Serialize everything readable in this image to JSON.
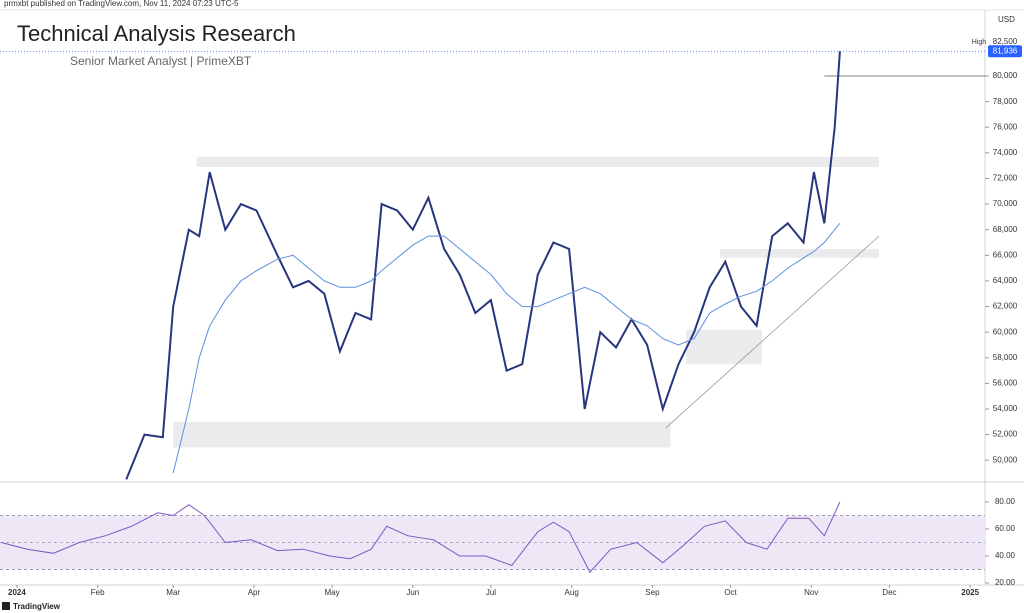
{
  "header": {
    "byline": "prmxbt published on TradingView.com, Nov 11, 2024 07:23 UTC-5",
    "title": "Technical Analysis Research",
    "subtitle": "Senior Market Analyst | PrimeXBT",
    "footer": "TradingView"
  },
  "chart_data": [
    {
      "type": "line",
      "currency": "USD",
      "x": [
        42,
        49,
        56,
        60,
        66,
        70,
        74,
        80,
        86,
        92,
        100,
        106,
        112,
        118,
        124,
        130,
        136,
        140,
        146,
        152,
        158,
        164,
        170,
        176,
        182,
        188,
        194,
        200,
        206,
        212,
        218,
        224,
        230,
        236,
        242,
        248,
        254,
        260,
        266,
        272,
        278,
        284,
        290,
        296,
        302,
        306,
        310,
        314,
        316
      ],
      "series": [
        {
          "color": "#27357e",
          "values": [
            48500,
            52000,
            51800,
            62000,
            68000,
            67500,
            72500,
            68000,
            70000,
            69500,
            66000,
            63500,
            64000,
            63000,
            58500,
            61500,
            61000,
            70000,
            69500,
            68000,
            70500,
            66500,
            64500,
            61500,
            62500,
            57000,
            57500,
            64500,
            67000,
            66500,
            54000,
            60000,
            58800,
            61000,
            59000,
            54000,
            57500,
            60000,
            63500,
            65500,
            62000,
            60500,
            67500,
            68500,
            67000,
            72500,
            68500,
            76000,
            81936
          ]
        },
        {
          "color": "#5b8fe0",
          "values": [
            null,
            null,
            null,
            49000,
            54000,
            58000,
            60500,
            62500,
            64000,
            64800,
            65700,
            66000,
            65000,
            64000,
            63500,
            63500,
            64000,
            64800,
            65800,
            66800,
            67500,
            67500,
            66500,
            65500,
            64500,
            63000,
            62000,
            62000,
            62500,
            63000,
            63500,
            63000,
            62000,
            61000,
            60500,
            59500,
            59000,
            59500,
            61500,
            62200,
            62800,
            63200,
            64000,
            65000,
            65800,
            66300,
            67000,
            68000,
            68500
          ]
        }
      ],
      "xlim": [
        -6.5,
        371.7
      ],
      "ylim": [
        48300,
        85000
      ],
      "xticks": [
        {
          "value": 0,
          "label": "2024"
        },
        {
          "value": 31,
          "label": "Feb"
        },
        {
          "value": 60,
          "label": "Mar"
        },
        {
          "value": 91,
          "label": "Apr"
        },
        {
          "value": 121,
          "label": "May"
        },
        {
          "value": 152,
          "label": "Jun"
        },
        {
          "value": 182,
          "label": "Jul"
        },
        {
          "value": 213,
          "label": "Aug"
        },
        {
          "value": 244,
          "label": "Sep"
        },
        {
          "value": 274,
          "label": "Oct"
        },
        {
          "value": 305,
          "label": "Nov"
        },
        {
          "value": 335,
          "label": "Dec"
        },
        {
          "value": 366,
          "label": "2025"
        }
      ],
      "yticks": [
        {
          "value": 50000,
          "label": "50,000"
        },
        {
          "value": 52000,
          "label": "52,000"
        },
        {
          "value": 54000,
          "label": "54,000"
        },
        {
          "value": 56000,
          "label": "56,000"
        },
        {
          "value": 58000,
          "label": "58,000"
        },
        {
          "value": 60000,
          "label": "60,000"
        },
        {
          "value": 62000,
          "label": "62,000"
        },
        {
          "value": 64000,
          "label": "64,000"
        },
        {
          "value": 66000,
          "label": "66,000"
        },
        {
          "value": 68000,
          "label": "68,000"
        },
        {
          "value": 70000,
          "label": "70,000"
        },
        {
          "value": 72000,
          "label": "72,000"
        },
        {
          "value": 74000,
          "label": "74,000"
        },
        {
          "value": 76000,
          "label": "76,000"
        },
        {
          "value": 78000,
          "label": "78,000"
        },
        {
          "value": 80000,
          "label": "80,000"
        }
      ],
      "high_label": "High",
      "high": {
        "value": 82500,
        "label": "82,500"
      },
      "last_price": {
        "value": 81936,
        "label": "81,936"
      },
      "hline": {
        "from": 310,
        "value": 80000
      },
      "zones": [
        {
          "x": [
            69,
            331
          ],
          "y": [
            72900,
            73700
          ]
        },
        {
          "x": [
            60,
            251
          ],
          "y": [
            51000,
            53000
          ]
        },
        {
          "x": [
            270,
            331
          ],
          "y": [
            65800,
            66500
          ]
        },
        {
          "x": [
            257,
            286
          ],
          "y": [
            57500,
            60200
          ]
        }
      ],
      "trendline": {
        "x": [
          249,
          331
        ],
        "y": [
          52500,
          67500
        ]
      }
    },
    {
      "type": "line",
      "x": [
        -6,
        4,
        14,
        24,
        34,
        44,
        54,
        60,
        66,
        72,
        80,
        90,
        100,
        110,
        120,
        128,
        136,
        142,
        150,
        160,
        170,
        180,
        190,
        200,
        206,
        212,
        220,
        228,
        238,
        248,
        256,
        264,
        272,
        280,
        288,
        296,
        304,
        310,
        316
      ],
      "series": [
        {
          "color": "#7e57c2",
          "values": [
            50,
            45,
            42,
            50,
            55,
            62,
            72,
            70,
            78,
            70,
            50,
            52,
            44,
            45,
            40,
            38,
            45,
            62,
            55,
            52,
            40,
            40,
            33,
            58,
            65,
            58,
            28,
            45,
            50,
            35,
            48,
            62,
            66,
            50,
            45,
            68,
            68,
            55,
            80
          ]
        }
      ],
      "xlim": [
        -6.5,
        371.7
      ],
      "ylim": [
        18.5,
        94.8
      ],
      "yticks": [
        {
          "value": 20,
          "label": "20.00"
        },
        {
          "value": 40,
          "label": "40.00"
        },
        {
          "value": 60,
          "label": "60.00"
        },
        {
          "value": 80,
          "label": "80.00"
        }
      ],
      "band": [
        30,
        70
      ],
      "band_mid": 50
    }
  ]
}
